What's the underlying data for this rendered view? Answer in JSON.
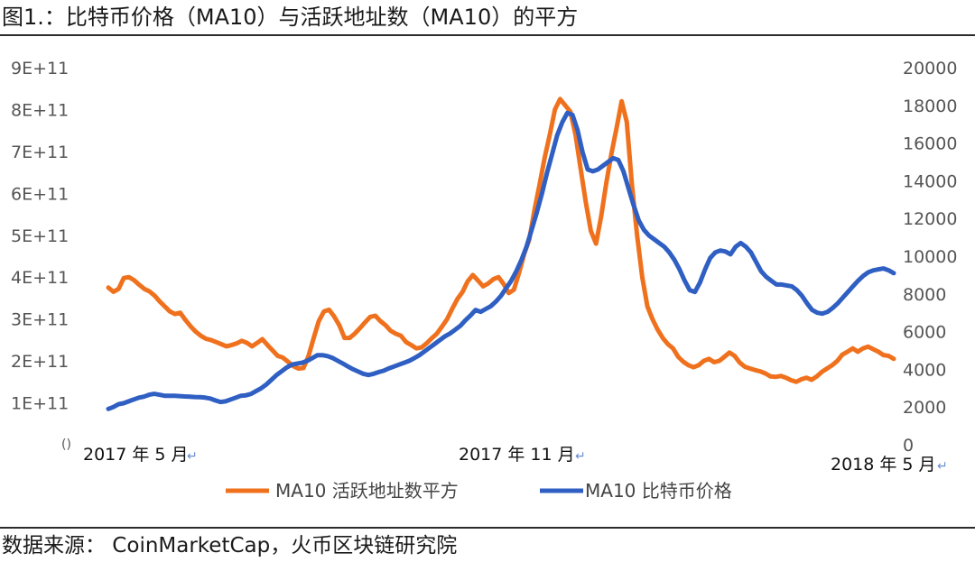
{
  "figure": {
    "title": "图1.：比特币价格（MA10）与活跃地址数（MA10）的平方",
    "source": "数据来源：  CoinMarketCap，火币区块链研究院"
  },
  "chart_data": {
    "type": "line",
    "x_labels": [
      "2017 年 5 月",
      "2017 年 11 月",
      "2018 年 5 月"
    ],
    "left_axis": {
      "ticks": [
        "()",
        "1E+11",
        "2E+11",
        "3E+11",
        "4E+11",
        "5E+11",
        "6E+11",
        "7E+11",
        "8E+11",
        "9E+11"
      ],
      "ylim": [
        0,
        900000000000
      ]
    },
    "right_axis": {
      "ticks": [
        "0",
        "2000",
        "4000",
        "6000",
        "8000",
        "10000",
        "12000",
        "14000",
        "16000",
        "18000",
        "20000"
      ],
      "ylim": [
        0,
        20000
      ]
    },
    "grid": false,
    "legend_position": "bottom",
    "colors": {
      "orange": "#f0711d",
      "blue": "#2f5fc2"
    },
    "series": [
      {
        "name": "MA10 活跃地址数平方",
        "axis": "left",
        "values": [
          375000000000,
          365000000000,
          372000000000,
          398000000000,
          400000000000,
          393000000000,
          382000000000,
          372000000000,
          366000000000,
          356000000000,
          342000000000,
          330000000000,
          318000000000,
          312000000000,
          315000000000,
          298000000000,
          283000000000,
          270000000000,
          260000000000,
          253000000000,
          250000000000,
          245000000000,
          240000000000,
          235000000000,
          238000000000,
          242000000000,
          248000000000,
          243000000000,
          235000000000,
          243000000000,
          252000000000,
          238000000000,
          225000000000,
          212000000000,
          208000000000,
          198000000000,
          188000000000,
          182000000000,
          183000000000,
          212000000000,
          255000000000,
          295000000000,
          318000000000,
          322000000000,
          306000000000,
          285000000000,
          255000000000,
          255000000000,
          265000000000,
          278000000000,
          292000000000,
          305000000000,
          308000000000,
          295000000000,
          285000000000,
          272000000000,
          265000000000,
          260000000000,
          245000000000,
          238000000000,
          230000000000,
          232000000000,
          242000000000,
          254000000000,
          265000000000,
          282000000000,
          300000000000,
          325000000000,
          348000000000,
          365000000000,
          390000000000,
          405000000000,
          392000000000,
          378000000000,
          385000000000,
          395000000000,
          400000000000,
          384000000000,
          362000000000,
          370000000000,
          410000000000,
          455000000000,
          490000000000,
          560000000000,
          620000000000,
          685000000000,
          740000000000,
          800000000000,
          825000000000,
          810000000000,
          795000000000,
          740000000000,
          660000000000,
          580000000000,
          510000000000,
          480000000000,
          545000000000,
          625000000000,
          695000000000,
          755000000000,
          820000000000,
          770000000000,
          620000000000,
          500000000000,
          400000000000,
          330000000000,
          300000000000,
          275000000000,
          255000000000,
          240000000000,
          230000000000,
          210000000000,
          198000000000,
          190000000000,
          185000000000,
          190000000000,
          200000000000,
          205000000000,
          197000000000,
          200000000000,
          210000000000,
          220000000000,
          212000000000,
          196000000000,
          186000000000,
          182000000000,
          178000000000,
          175000000000,
          170000000000,
          163000000000,
          162000000000,
          164000000000,
          160000000000,
          154000000000,
          150000000000,
          156000000000,
          160000000000,
          155000000000,
          163000000000,
          174000000000,
          182000000000,
          190000000000,
          200000000000,
          215000000000,
          222000000000,
          230000000000,
          222000000000,
          230000000000,
          234000000000,
          228000000000,
          222000000000,
          214000000000,
          212000000000,
          205000000000
        ]
      },
      {
        "name": "MA10 比特币价格",
        "axis": "right",
        "values": [
          1900,
          2000,
          2150,
          2200,
          2300,
          2400,
          2500,
          2550,
          2650,
          2700,
          2650,
          2600,
          2600,
          2600,
          2580,
          2560,
          2550,
          2530,
          2520,
          2500,
          2450,
          2350,
          2270,
          2300,
          2400,
          2500,
          2600,
          2620,
          2700,
          2850,
          3000,
          3200,
          3450,
          3700,
          3900,
          4100,
          4250,
          4300,
          4350,
          4450,
          4600,
          4750,
          4750,
          4700,
          4600,
          4450,
          4300,
          4150,
          4000,
          3880,
          3760,
          3700,
          3760,
          3850,
          3930,
          4050,
          4150,
          4250,
          4350,
          4450,
          4600,
          4750,
          4950,
          5150,
          5350,
          5550,
          5750,
          5900,
          6100,
          6300,
          6600,
          6850,
          7150,
          7050,
          7200,
          7350,
          7600,
          7900,
          8300,
          8700,
          9200,
          9800,
          10500,
          11400,
          12300,
          13300,
          14400,
          15400,
          16400,
          17100,
          17600,
          17500,
          16700,
          15500,
          14600,
          14500,
          14600,
          14800,
          15000,
          15200,
          15100,
          14500,
          13600,
          12700,
          11900,
          11400,
          11100,
          10900,
          10700,
          10500,
          10200,
          9800,
          9300,
          8700,
          8200,
          8100,
          8600,
          9300,
          9900,
          10200,
          10300,
          10250,
          10100,
          10500,
          10700,
          10500,
          10200,
          9700,
          9200,
          8900,
          8700,
          8500,
          8500,
          8450,
          8400,
          8200,
          7900,
          7500,
          7150,
          7000,
          6950,
          7050,
          7250,
          7500,
          7800,
          8100,
          8400,
          8700,
          8950,
          9150,
          9250,
          9300,
          9350,
          9250,
          9100
        ]
      }
    ]
  }
}
